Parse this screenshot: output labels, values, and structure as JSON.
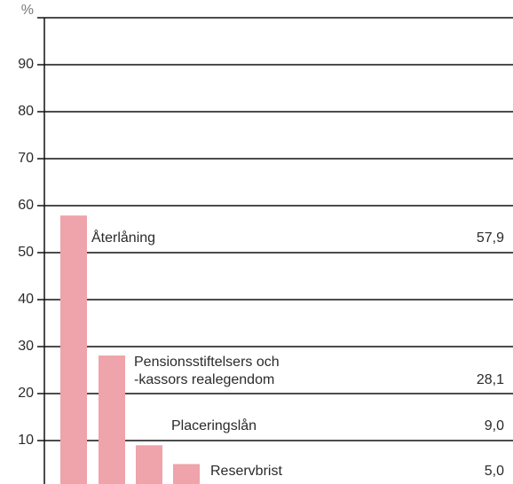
{
  "chart_data": {
    "type": "bar",
    "categories": [
      "Återlåning",
      "Pensionsstiftelsers och\n-kassors realegendom",
      "Placeringslån",
      "Reservbrist"
    ],
    "values": [
      57.9,
      28.1,
      9.0,
      5.0
    ],
    "value_labels": [
      "57,9",
      "28,1",
      "9,0",
      "5,0"
    ],
    "color": "#efa3aa",
    "ylim": [
      0,
      100
    ],
    "yticks": [
      10,
      20,
      30,
      40,
      50,
      60,
      70,
      80,
      90,
      {
        "value": 100,
        "label": "%"
      }
    ],
    "grid": true
  }
}
